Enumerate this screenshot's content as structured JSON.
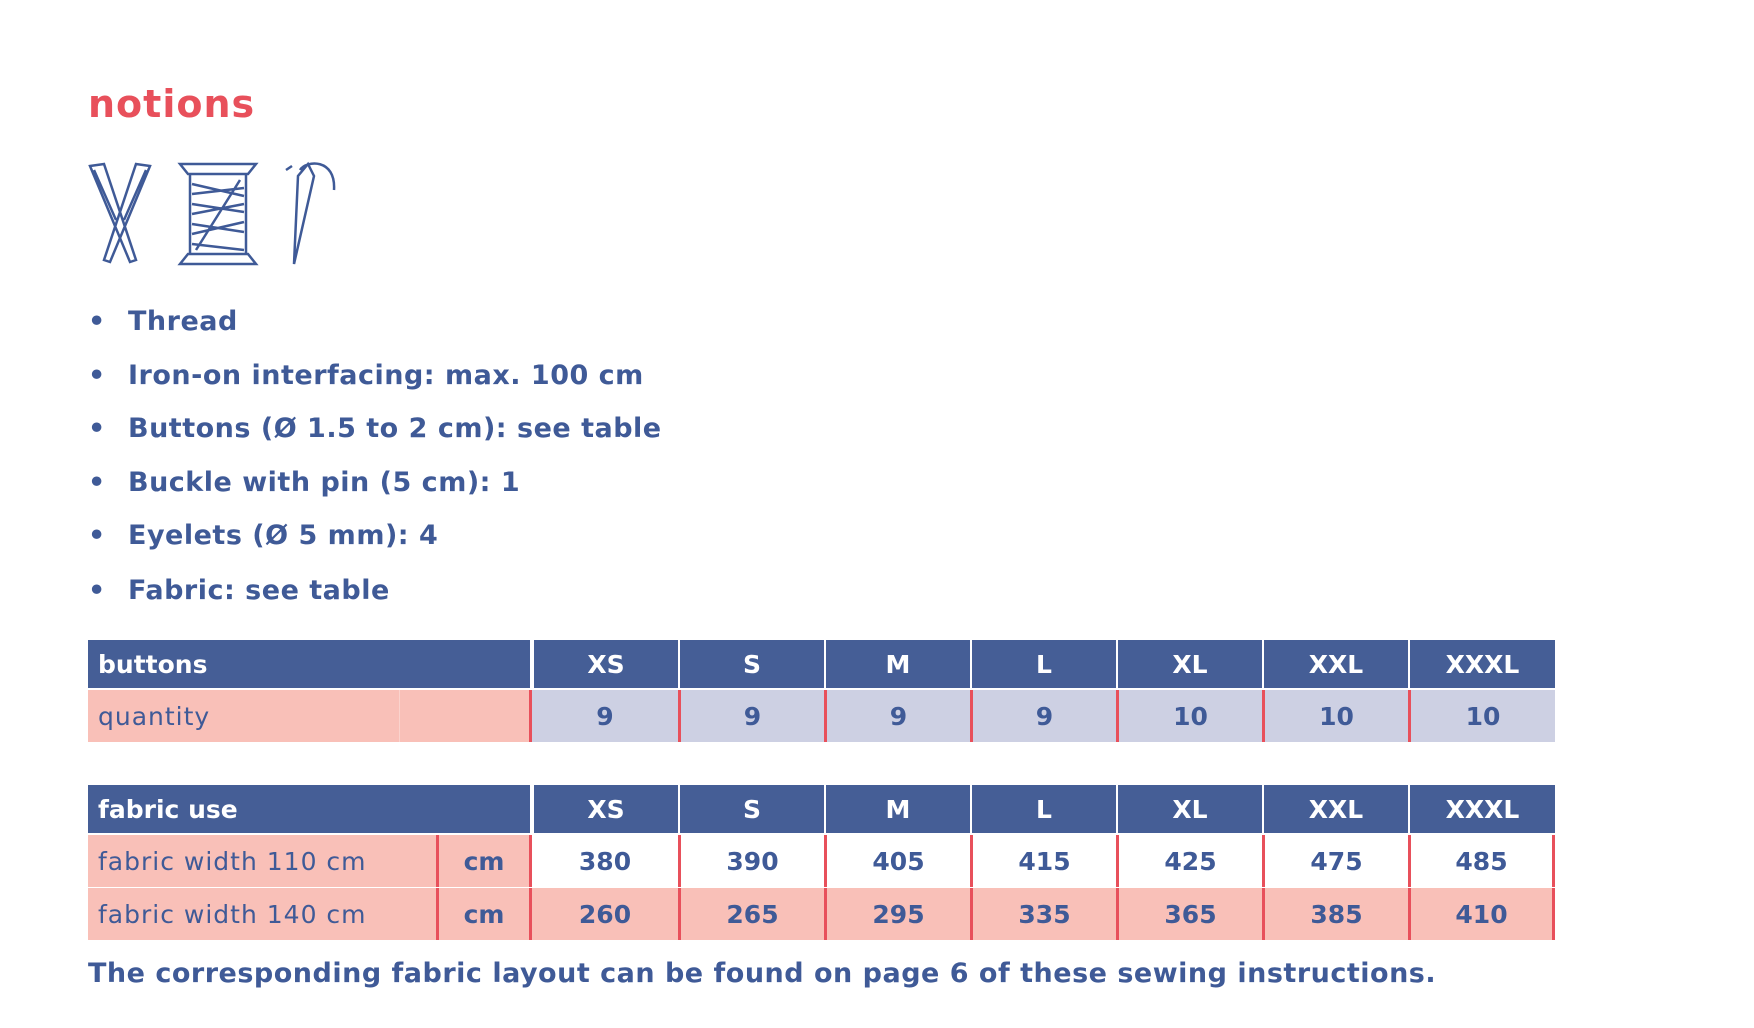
{
  "title": "notions",
  "bullets": [
    "Thread",
    "Iron-on interfacing: max. 100 cm",
    "Buttons (Ø 1.5 to 2 cm): see table",
    "Buckle with pin (5 cm): 1",
    "Eyelets (Ø 5 mm): 4",
    "Fabric: see table"
  ],
  "buttons_table": {
    "header": "buttons",
    "sizes": [
      "XS",
      "S",
      "M",
      "L",
      "XL",
      "XXL",
      "XXXL"
    ],
    "rows": [
      {
        "label": "quantity",
        "values": [
          9,
          9,
          9,
          9,
          10,
          10,
          10
        ]
      }
    ]
  },
  "fabric_table": {
    "header": "fabric use",
    "sizes": [
      "XS",
      "S",
      "M",
      "L",
      "XL",
      "XXL",
      "XXXL"
    ],
    "rows": [
      {
        "label": "fabric width 110 cm",
        "unit": "cm",
        "values": [
          380,
          390,
          405,
          415,
          425,
          475,
          485
        ]
      },
      {
        "label": "fabric width 140 cm",
        "unit": "cm",
        "values": [
          260,
          265,
          295,
          335,
          365,
          385,
          410
        ]
      }
    ]
  },
  "footer": "The corresponding fabric layout can be found on page 6 of these sewing instructions."
}
